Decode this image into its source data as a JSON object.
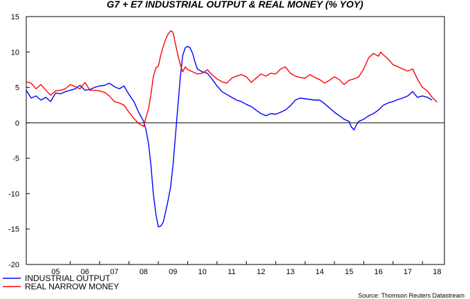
{
  "chart_data": {
    "type": "line",
    "title": "G7 + E7 INDUSTRIAL OUTPUT & REAL MONEY (% YOY)",
    "xlabel": "",
    "ylabel": "",
    "xlim": [
      2004.5,
      2018.75
    ],
    "ylim": [
      -20,
      15
    ],
    "yticks": [
      15,
      10,
      5,
      0,
      -5,
      -10,
      -15,
      -20
    ],
    "ytick_labels": [
      "15",
      "10",
      "5",
      "0",
      "-5",
      "-10",
      "-15",
      "-20"
    ],
    "xticks": [
      2005,
      2006,
      2007,
      2008,
      2009,
      2010,
      2011,
      2012,
      2013,
      2014,
      2015,
      2016,
      2017,
      2018
    ],
    "xtick_labels": [
      "05",
      "06",
      "07",
      "08",
      "09",
      "10",
      "11",
      "12",
      "13",
      "14",
      "15",
      "16",
      "17",
      "18"
    ],
    "zero_line": true,
    "grid": false,
    "legend_position": "bottom-left",
    "source": "Source: Thomson Reuters Datastream",
    "series": [
      {
        "name": "INDUSTRIAL OUTPUT",
        "color": "#0000ff",
        "points": [
          [
            2004.5,
            4.6
          ],
          [
            2004.67,
            3.5
          ],
          [
            2004.83,
            3.8
          ],
          [
            2005.0,
            3.2
          ],
          [
            2005.17,
            3.6
          ],
          [
            2005.33,
            3.0
          ],
          [
            2005.5,
            4.2
          ],
          [
            2005.67,
            4.1
          ],
          [
            2005.83,
            4.4
          ],
          [
            2006.0,
            4.6
          ],
          [
            2006.17,
            4.8
          ],
          [
            2006.33,
            5.3
          ],
          [
            2006.5,
            4.6
          ],
          [
            2006.67,
            4.7
          ],
          [
            2006.83,
            5.0
          ],
          [
            2007.0,
            5.2
          ],
          [
            2007.17,
            5.3
          ],
          [
            2007.33,
            5.6
          ],
          [
            2007.5,
            5.1
          ],
          [
            2007.67,
            4.8
          ],
          [
            2007.83,
            5.2
          ],
          [
            2008.0,
            4.0
          ],
          [
            2008.17,
            3.0
          ],
          [
            2008.33,
            1.5
          ],
          [
            2008.5,
            0.2
          ],
          [
            2008.58,
            -1.0
          ],
          [
            2008.67,
            -3.0
          ],
          [
            2008.75,
            -6.0
          ],
          [
            2008.83,
            -10.0
          ],
          [
            2008.92,
            -13.0
          ],
          [
            2009.0,
            -14.7
          ],
          [
            2009.08,
            -14.6
          ],
          [
            2009.17,
            -14.0
          ],
          [
            2009.25,
            -12.5
          ],
          [
            2009.33,
            -11.0
          ],
          [
            2009.42,
            -9.0
          ],
          [
            2009.5,
            -6.0
          ],
          [
            2009.58,
            -2.0
          ],
          [
            2009.67,
            2.5
          ],
          [
            2009.75,
            6.5
          ],
          [
            2009.83,
            9.5
          ],
          [
            2009.92,
            10.6
          ],
          [
            2010.0,
            10.8
          ],
          [
            2010.08,
            10.6
          ],
          [
            2010.17,
            9.8
          ],
          [
            2010.25,
            8.6
          ],
          [
            2010.33,
            7.6
          ],
          [
            2010.5,
            7.2
          ],
          [
            2010.67,
            7.0
          ],
          [
            2010.83,
            6.2
          ],
          [
            2011.0,
            5.2
          ],
          [
            2011.17,
            4.4
          ],
          [
            2011.33,
            4.0
          ],
          [
            2011.5,
            3.6
          ],
          [
            2011.67,
            3.2
          ],
          [
            2011.83,
            3.0
          ],
          [
            2012.0,
            2.6
          ],
          [
            2012.17,
            2.3
          ],
          [
            2012.33,
            1.8
          ],
          [
            2012.5,
            1.3
          ],
          [
            2012.67,
            1.0
          ],
          [
            2012.83,
            1.3
          ],
          [
            2013.0,
            1.2
          ],
          [
            2013.17,
            1.5
          ],
          [
            2013.33,
            1.8
          ],
          [
            2013.5,
            2.4
          ],
          [
            2013.67,
            3.2
          ],
          [
            2013.83,
            3.5
          ],
          [
            2014.0,
            3.4
          ],
          [
            2014.17,
            3.3
          ],
          [
            2014.33,
            3.2
          ],
          [
            2014.5,
            3.2
          ],
          [
            2014.67,
            2.7
          ],
          [
            2014.83,
            2.1
          ],
          [
            2015.0,
            1.5
          ],
          [
            2015.17,
            1.0
          ],
          [
            2015.33,
            0.5
          ],
          [
            2015.5,
            0.2
          ],
          [
            2015.58,
            -0.6
          ],
          [
            2015.67,
            -1.0
          ],
          [
            2015.75,
            -0.3
          ],
          [
            2015.83,
            0.2
          ],
          [
            2016.0,
            0.5
          ],
          [
            2016.17,
            1.0
          ],
          [
            2016.33,
            1.3
          ],
          [
            2016.5,
            1.8
          ],
          [
            2016.67,
            2.5
          ],
          [
            2016.83,
            2.8
          ],
          [
            2017.0,
            3.0
          ],
          [
            2017.17,
            3.3
          ],
          [
            2017.33,
            3.5
          ],
          [
            2017.5,
            3.8
          ],
          [
            2017.67,
            4.4
          ],
          [
            2017.83,
            3.6
          ],
          [
            2018.0,
            3.8
          ],
          [
            2018.17,
            3.6
          ],
          [
            2018.33,
            3.2
          ]
        ]
      },
      {
        "name": "REAL NARROW MONEY",
        "color": "#ff0000",
        "points": [
          [
            2004.5,
            5.8
          ],
          [
            2004.67,
            5.6
          ],
          [
            2004.83,
            4.8
          ],
          [
            2005.0,
            5.4
          ],
          [
            2005.17,
            4.6
          ],
          [
            2005.33,
            3.9
          ],
          [
            2005.5,
            4.5
          ],
          [
            2005.67,
            4.6
          ],
          [
            2005.83,
            4.8
          ],
          [
            2006.0,
            5.4
          ],
          [
            2006.17,
            5.1
          ],
          [
            2006.33,
            4.8
          ],
          [
            2006.5,
            5.7
          ],
          [
            2006.67,
            4.6
          ],
          [
            2006.83,
            4.6
          ],
          [
            2007.0,
            4.5
          ],
          [
            2007.17,
            4.3
          ],
          [
            2007.33,
            3.8
          ],
          [
            2007.5,
            3.0
          ],
          [
            2007.67,
            2.8
          ],
          [
            2007.83,
            2.5
          ],
          [
            2008.0,
            1.5
          ],
          [
            2008.17,
            0.6
          ],
          [
            2008.33,
            -0.1
          ],
          [
            2008.5,
            -0.5
          ],
          [
            2008.58,
            0.8
          ],
          [
            2008.67,
            2.0
          ],
          [
            2008.75,
            4.0
          ],
          [
            2008.83,
            6.5
          ],
          [
            2008.92,
            7.8
          ],
          [
            2009.0,
            8.0
          ],
          [
            2009.08,
            9.5
          ],
          [
            2009.17,
            10.8
          ],
          [
            2009.25,
            11.8
          ],
          [
            2009.33,
            12.5
          ],
          [
            2009.42,
            13.0
          ],
          [
            2009.5,
            12.8
          ],
          [
            2009.58,
            11.2
          ],
          [
            2009.67,
            9.5
          ],
          [
            2009.75,
            8.2
          ],
          [
            2009.83,
            7.2
          ],
          [
            2009.92,
            7.9
          ],
          [
            2010.0,
            7.5
          ],
          [
            2010.17,
            7.2
          ],
          [
            2010.33,
            6.9
          ],
          [
            2010.5,
            7.0
          ],
          [
            2010.67,
            7.5
          ],
          [
            2010.83,
            6.8
          ],
          [
            2011.0,
            6.2
          ],
          [
            2011.17,
            5.8
          ],
          [
            2011.33,
            5.6
          ],
          [
            2011.5,
            6.3
          ],
          [
            2011.67,
            6.6
          ],
          [
            2011.83,
            6.8
          ],
          [
            2012.0,
            6.5
          ],
          [
            2012.17,
            5.7
          ],
          [
            2012.33,
            6.3
          ],
          [
            2012.5,
            6.9
          ],
          [
            2012.67,
            6.6
          ],
          [
            2012.83,
            7.0
          ],
          [
            2013.0,
            6.9
          ],
          [
            2013.17,
            7.6
          ],
          [
            2013.33,
            7.9
          ],
          [
            2013.5,
            7.0
          ],
          [
            2013.67,
            6.6
          ],
          [
            2013.83,
            6.4
          ],
          [
            2014.0,
            6.3
          ],
          [
            2014.17,
            6.8
          ],
          [
            2014.33,
            6.4
          ],
          [
            2014.5,
            6.1
          ],
          [
            2014.67,
            5.6
          ],
          [
            2014.83,
            6.0
          ],
          [
            2015.0,
            6.5
          ],
          [
            2015.17,
            6.1
          ],
          [
            2015.33,
            5.4
          ],
          [
            2015.5,
            6.0
          ],
          [
            2015.67,
            6.2
          ],
          [
            2015.83,
            6.5
          ],
          [
            2016.0,
            7.6
          ],
          [
            2016.17,
            9.2
          ],
          [
            2016.33,
            9.8
          ],
          [
            2016.5,
            9.4
          ],
          [
            2016.58,
            10.0
          ],
          [
            2016.67,
            9.6
          ],
          [
            2016.83,
            9.0
          ],
          [
            2017.0,
            8.2
          ],
          [
            2017.17,
            7.9
          ],
          [
            2017.33,
            7.6
          ],
          [
            2017.5,
            7.3
          ],
          [
            2017.67,
            7.6
          ],
          [
            2017.83,
            6.2
          ],
          [
            2018.0,
            5.0
          ],
          [
            2018.17,
            4.5
          ],
          [
            2018.33,
            3.6
          ],
          [
            2018.5,
            2.9
          ]
        ]
      }
    ]
  }
}
